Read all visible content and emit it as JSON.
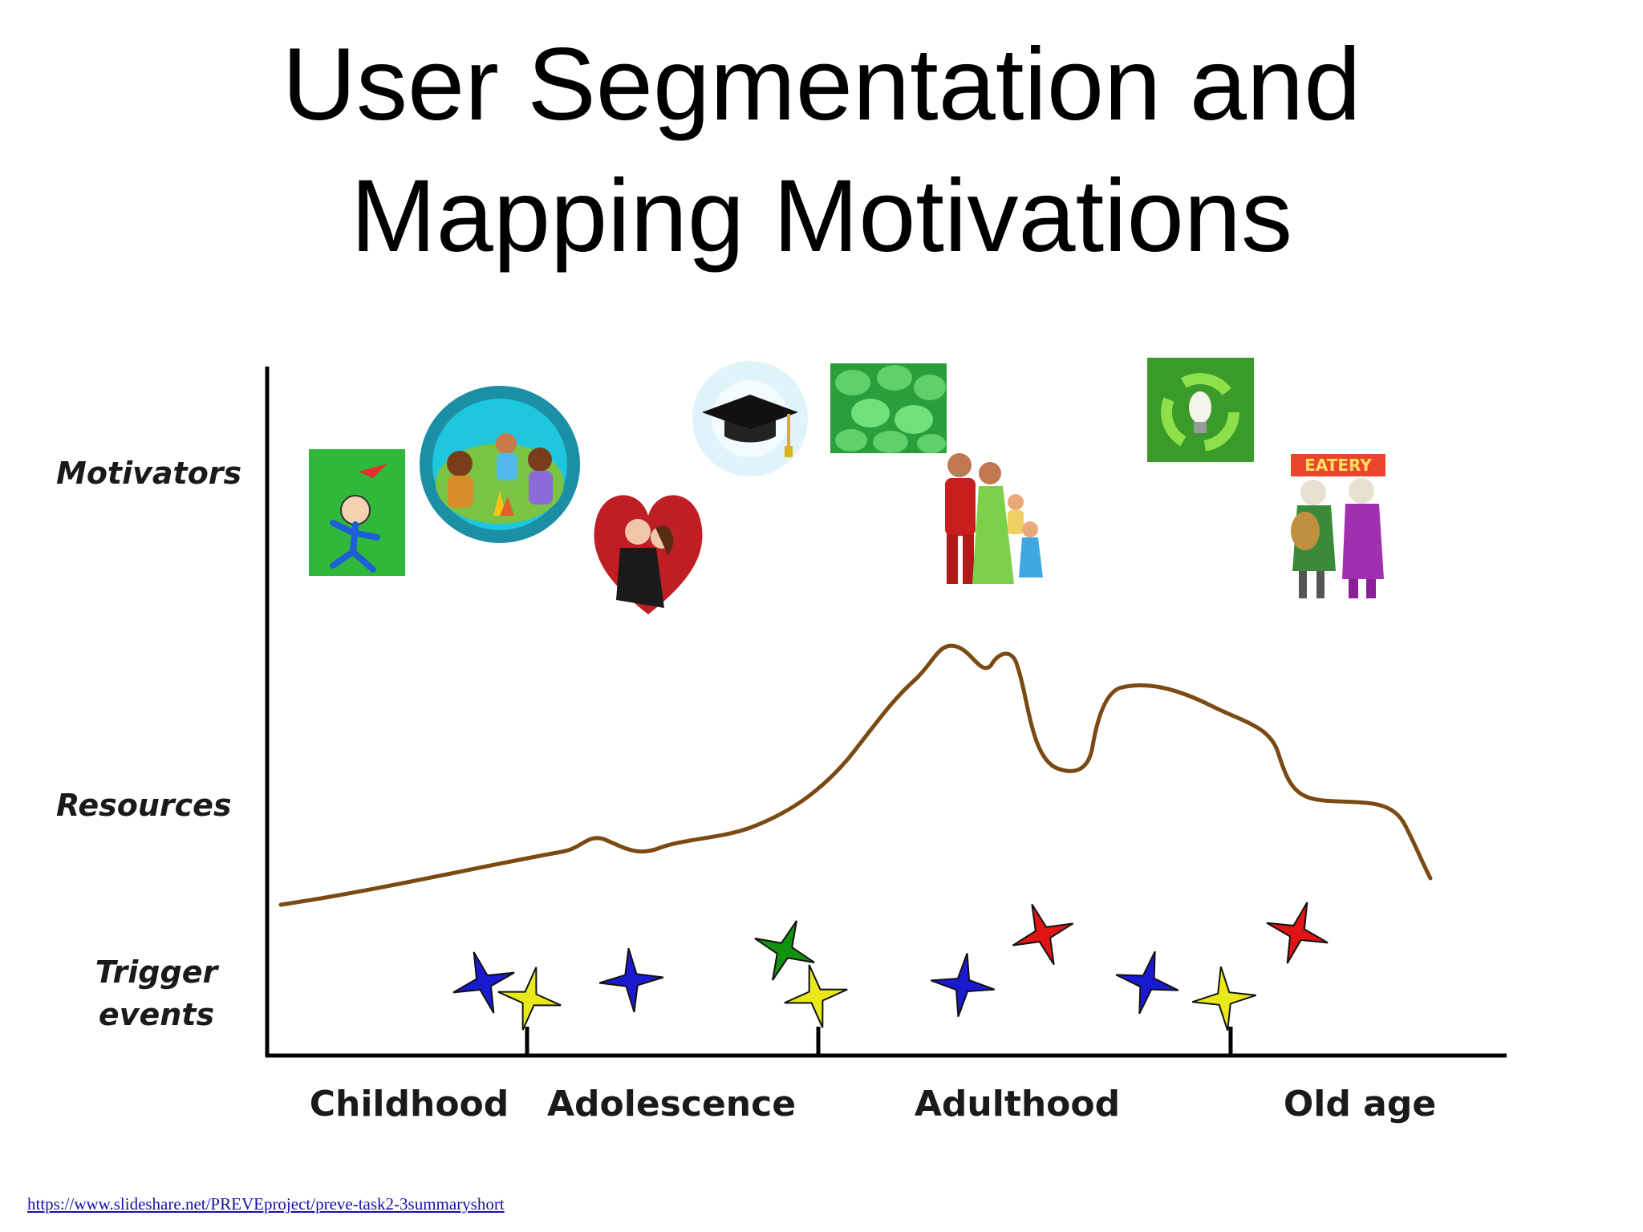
{
  "title": {
    "line1": "User Segmentation and",
    "line2": "Mapping Motivations"
  },
  "diagram": {
    "y_axis_labels": {
      "motivators": "Motivators",
      "resources": "Resources",
      "trigger_line1": "Trigger",
      "trigger_line2": "events"
    },
    "stages": [
      "Childhood",
      "Adolescence",
      "Adulthood",
      "Old age"
    ],
    "motivator_icons": [
      "playing-child-icon",
      "campfire-friends-icon",
      "romance-heart-icon",
      "graduation-cap-icon",
      "money-coins-icon",
      "family-icon",
      "recycle-bulb-icon",
      "elderly-couple-icon"
    ],
    "eatery_sign_text": "EATERY",
    "trigger_colors": [
      "#1a1ad0",
      "#e8e81a",
      "#1a1ad0",
      "#12920f",
      "#e8e81a",
      "#1a1ad0",
      "#e01414",
      "#1a1ad0",
      "#e8e81a",
      "#e01414"
    ],
    "resources_curve_color": "#7a4a12"
  },
  "source_link": "https://www.slideshare.net/PREVEproject/preve-task2-3summaryshort"
}
